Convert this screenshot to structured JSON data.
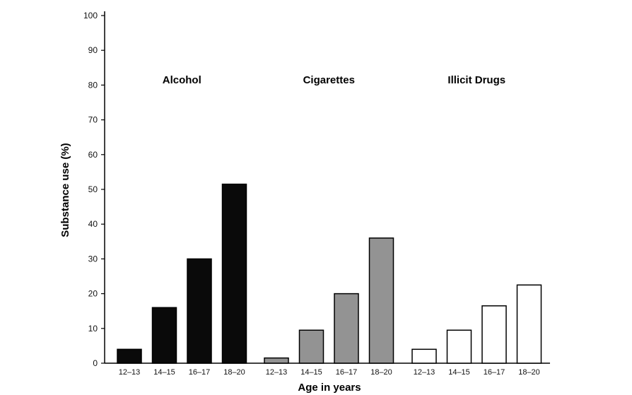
{
  "chart_data": {
    "type": "bar",
    "title": "",
    "xlabel": "Age in years",
    "ylabel": "Substance use (%)",
    "ylim": [
      0,
      100
    ],
    "yticks": [
      "0",
      "10",
      "20",
      "30",
      "40",
      "50",
      "60",
      "70",
      "80",
      "90",
      "100"
    ],
    "categories": [
      "12–13",
      "14–15",
      "16–17",
      "18–20"
    ],
    "groups": [
      {
        "name": "Alcohol",
        "color": "#0a0a0a",
        "values": [
          4,
          16,
          30,
          51.5
        ]
      },
      {
        "name": "Cigarettes",
        "color": "#939393",
        "values": [
          1.5,
          9.5,
          20,
          36
        ]
      },
      {
        "name": "Illicit Drugs",
        "color": "#ffffff",
        "values": [
          4,
          9.5,
          16.5,
          22.5
        ]
      }
    ],
    "grid": false
  }
}
